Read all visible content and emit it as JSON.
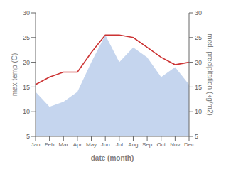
{
  "chart_data": {
    "type": "line",
    "xlabel": "date (month)",
    "ylabel": "max temp (C)",
    "y2label": "med. precipitation (kg/m2)",
    "categories": [
      "Jan",
      "Feb",
      "Mar",
      "Apr",
      "May",
      "Jun",
      "Jul",
      "Aug",
      "Sep",
      "Oct",
      "Nov",
      "Dec"
    ],
    "series": [
      {
        "type": "area",
        "color": "#c5d5ee",
        "axis": "y2",
        "values": [
          14.0,
          11.0,
          12.0,
          14.0,
          20.0,
          25.5,
          20.0,
          23.0,
          21.0,
          17.0,
          19.0,
          15.5
        ]
      },
      {
        "type": "line",
        "color": "#cc3333",
        "values": [
          15.5,
          17.0,
          18.0,
          18.0,
          22.0,
          25.5,
          25.5,
          25.0,
          23.0,
          21.0,
          19.5,
          20.0
        ]
      }
    ],
    "ylim": [
      5,
      30
    ],
    "yticks": [
      5,
      10,
      15,
      20,
      25,
      30
    ],
    "y2lim": [
      5,
      30
    ],
    "y2ticks": [
      5,
      10,
      15,
      20,
      25,
      30
    ],
    "grid": false
  }
}
